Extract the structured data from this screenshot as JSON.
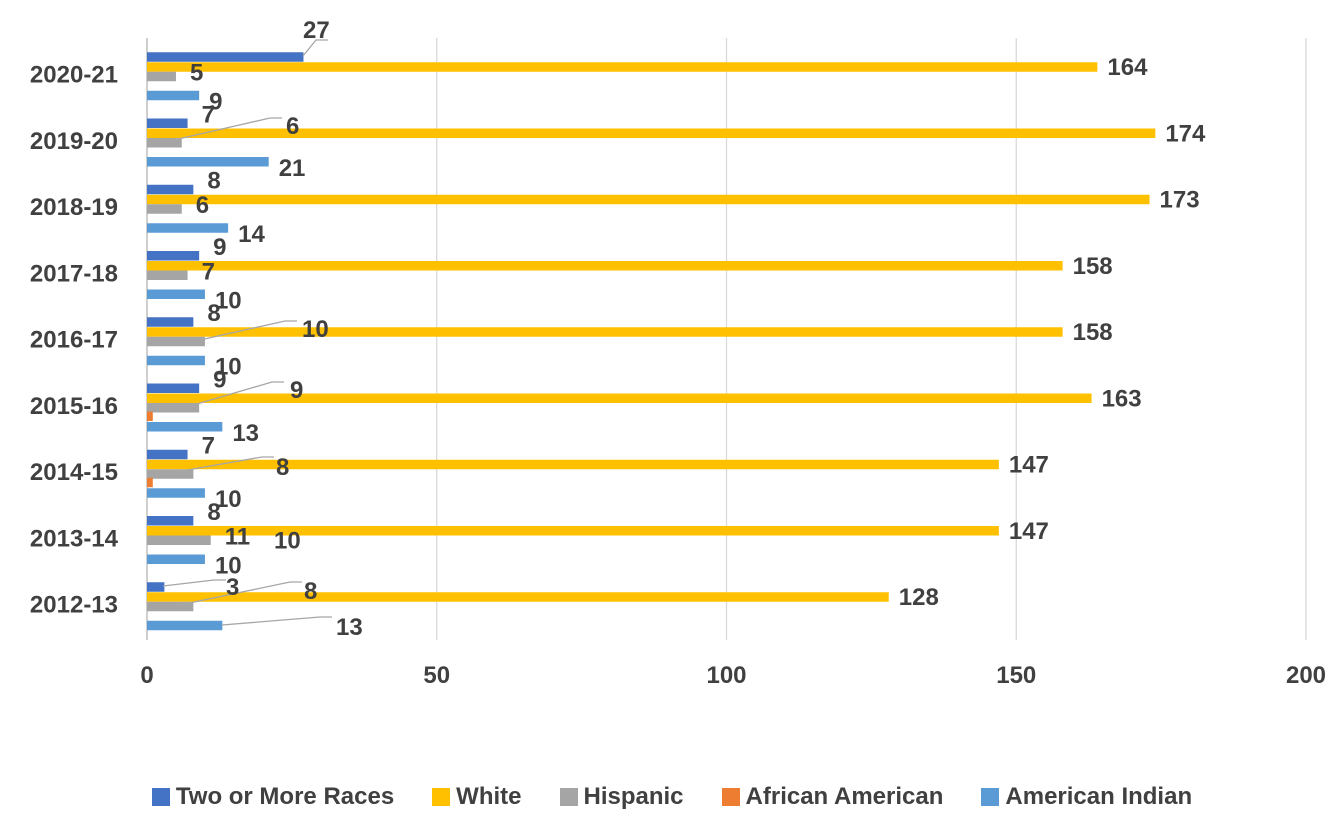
{
  "chart_data": {
    "type": "bar",
    "orientation": "horizontal",
    "categories": [
      "2020-21",
      "2019-20",
      "2018-19",
      "2017-18",
      "2016-17",
      "2015-16",
      "2014-15",
      "2013-14",
      "2012-13"
    ],
    "series": [
      {
        "name": "Two or More Races",
        "color": "#4472C4",
        "values": [
          27,
          7,
          8,
          9,
          8,
          9,
          7,
          8,
          3
        ]
      },
      {
        "name": "White",
        "color": "#FFC000",
        "values": [
          164,
          174,
          173,
          158,
          158,
          163,
          147,
          147,
          128
        ]
      },
      {
        "name": "Hispanic",
        "color": "#A5A5A5",
        "values": [
          5,
          6,
          6,
          7,
          10,
          9,
          8,
          11,
          8
        ]
      },
      {
        "name": "African American",
        "color": "#ED7D31",
        "values": [
          0,
          0,
          0,
          0,
          0,
          1,
          1,
          0,
          0
        ]
      },
      {
        "name": "American Indian",
        "color": "#5B9BD5",
        "values": [
          9,
          21,
          14,
          10,
          10,
          13,
          10,
          10,
          13
        ]
      }
    ],
    "data_labels": [
      [
        "27",
        "164",
        "5",
        "",
        "9"
      ],
      [
        "7",
        "174",
        "6",
        "",
        "21"
      ],
      [
        "8",
        "173",
        "6",
        "",
        "14"
      ],
      [
        "9",
        "158",
        "7",
        "",
        "10"
      ],
      [
        "8",
        "158",
        "10",
        "",
        "10"
      ],
      [
        "9",
        "163",
        "9",
        "",
        "13"
      ],
      [
        "7",
        "147",
        "8",
        "",
        "10"
      ],
      [
        "8",
        "147",
        "11",
        "",
        "10"
      ],
      [
        "3",
        "128",
        "8",
        "",
        "13"
      ]
    ],
    "secondary_labels": [
      "",
      "",
      "",
      "",
      "",
      "",
      "",
      "10",
      ""
    ],
    "xlim": [
      0,
      200
    ],
    "xticks": [
      "0",
      "50",
      "100",
      "150",
      "200"
    ],
    "grid": true,
    "legend_position": "bottom"
  }
}
